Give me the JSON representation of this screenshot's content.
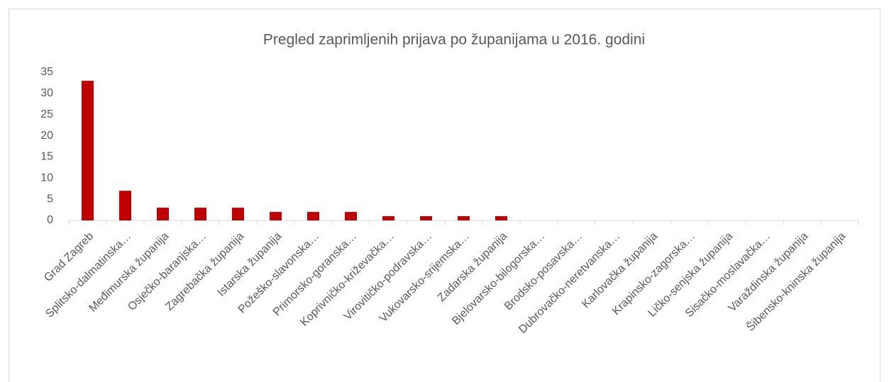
{
  "chart_data": {
    "type": "bar",
    "title": "Pregled zaprimljenih prijava po županijama u 2016. godini",
    "categories": [
      "Grad Zagreb",
      "Splitsko-dalmatinska…",
      "Međimurska županija",
      "Osječko-baranjska…",
      "Zagrebačka županija",
      "Istarska županija",
      "Požeško-slavonska…",
      "Primorsko-goranska…",
      "Koprivničko-križevačka…",
      "Virovitičko-podravska…",
      "Vukovarsko-srijemska…",
      "Zadarska županija",
      "Bjelovarsko-bilogorska…",
      "Brodsko-posavska…",
      "Dubrovačko-neretvanska…",
      "Karlovačka županija",
      "Krapinsko-zagorska…",
      "Ličko-senjska županija",
      "Sisačko-moslavačka…",
      "Varaždinska županija",
      "Šibensko-kninska županija"
    ],
    "values": [
      33,
      7,
      3,
      3,
      3,
      2,
      2,
      2,
      1,
      1,
      1,
      1,
      0,
      0,
      0,
      0,
      0,
      0,
      0,
      0,
      0
    ],
    "color": "#c00000",
    "ylim": [
      0,
      35
    ],
    "yticks": [
      0,
      5,
      10,
      15,
      20,
      25,
      30,
      35
    ],
    "grid": false
  }
}
